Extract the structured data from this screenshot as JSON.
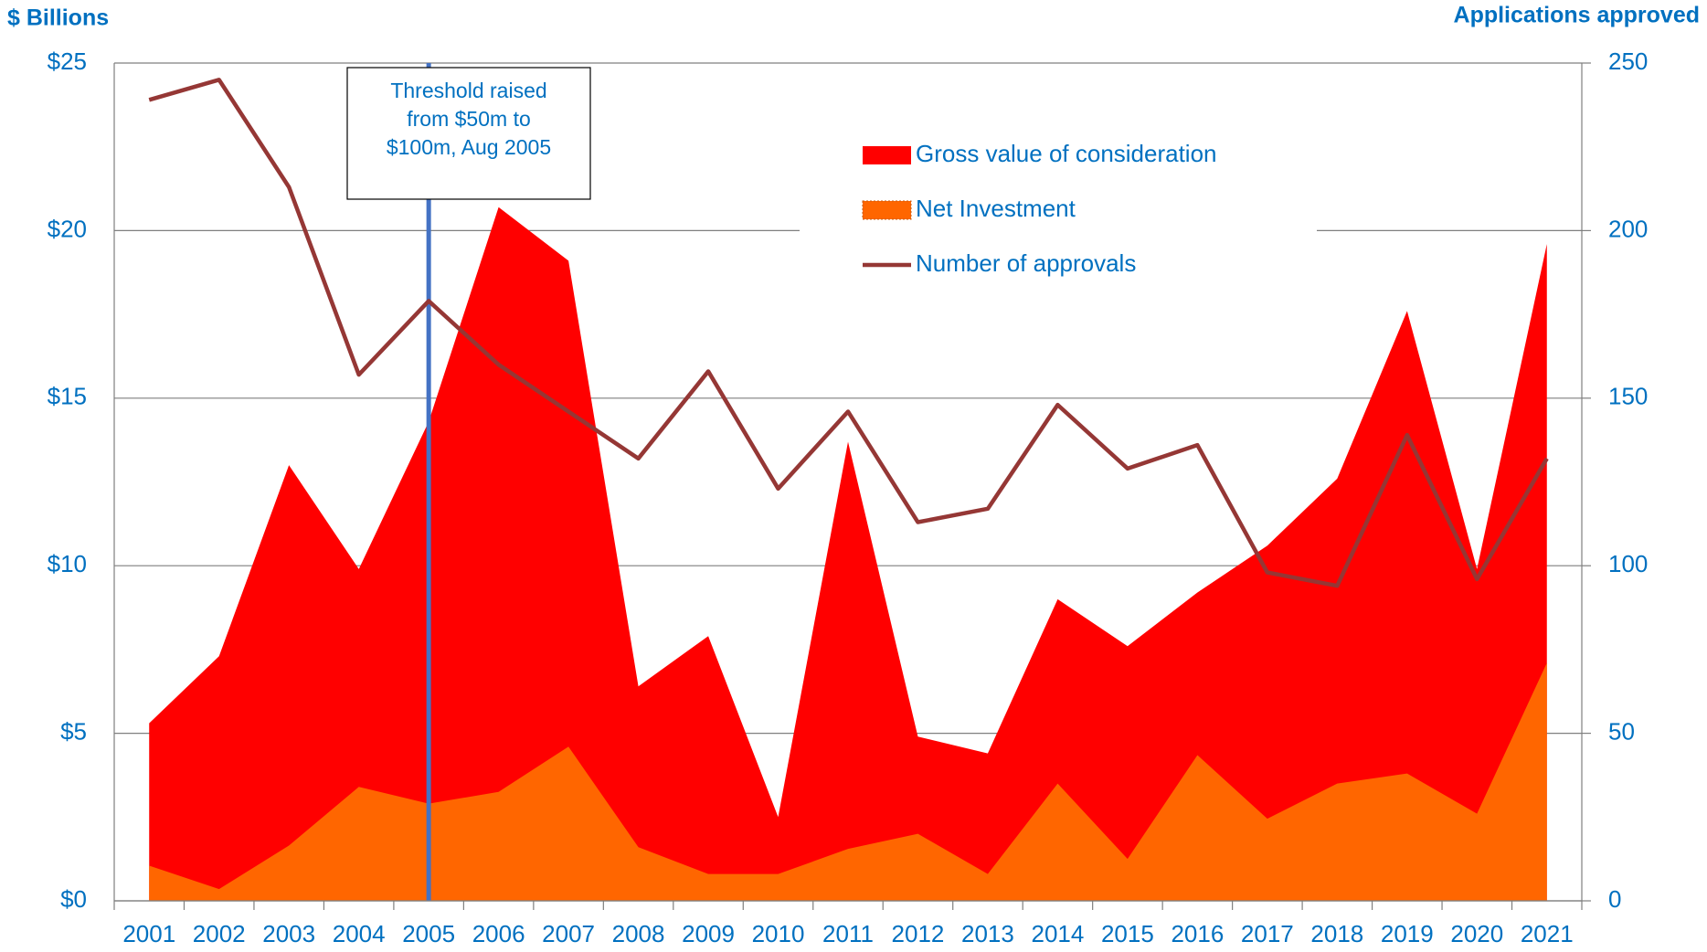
{
  "chart_data": {
    "type": "area_line",
    "y_axis_title": "$ Billions",
    "y2_axis_title": "Applications approved",
    "categories": [
      "2001",
      "2002",
      "2003",
      "2004",
      "2005",
      "2006",
      "2007",
      "2008",
      "2009",
      "2010",
      "2011",
      "2012",
      "2013",
      "2014",
      "2015",
      "2016",
      "2017",
      "2018",
      "2019",
      "2020",
      "2021"
    ],
    "series": [
      {
        "name": "Gross value of consideration",
        "kind": "area",
        "color": "#ff0000",
        "values": [
          5.3,
          7.3,
          13.0,
          9.9,
          14.3,
          20.7,
          19.1,
          6.4,
          7.9,
          2.5,
          13.7,
          4.9,
          4.4,
          9.0,
          7.6,
          9.2,
          10.6,
          12.6,
          17.6,
          9.9,
          19.6
        ]
      },
      {
        "name": "Net Investment",
        "kind": "area",
        "color": "#ff6600",
        "values": [
          1.05,
          0.35,
          1.65,
          3.4,
          2.9,
          3.25,
          4.6,
          1.6,
          0.8,
          0.8,
          1.55,
          2.0,
          0.8,
          3.5,
          1.25,
          4.35,
          2.45,
          3.5,
          3.8,
          2.6,
          7.1
        ]
      },
      {
        "name": "Number of approvals",
        "kind": "line",
        "axis": "y2",
        "color": "#953735",
        "values": [
          239,
          245,
          213,
          157,
          179,
          160,
          146,
          132,
          158,
          123,
          146,
          113,
          117,
          148,
          129,
          136,
          98,
          94,
          139,
          96,
          132
        ]
      }
    ],
    "ylim": [
      0,
      25
    ],
    "yticks": [
      {
        "value": 0,
        "label": "$0"
      },
      {
        "value": 5,
        "label": "$5"
      },
      {
        "value": 10,
        "label": "$10"
      },
      {
        "value": 15,
        "label": "$15"
      },
      {
        "value": 20,
        "label": "$20"
      },
      {
        "value": 25,
        "label": "$25"
      }
    ],
    "y2lim": [
      0,
      250
    ],
    "y2ticks": [
      0,
      50,
      100,
      150,
      200,
      250
    ],
    "grid": true,
    "annotation": {
      "category": "2005",
      "color": "#4472c4",
      "lines": [
        "Threshold raised",
        "from $50m to",
        "$100m, Aug 2005"
      ]
    }
  }
}
